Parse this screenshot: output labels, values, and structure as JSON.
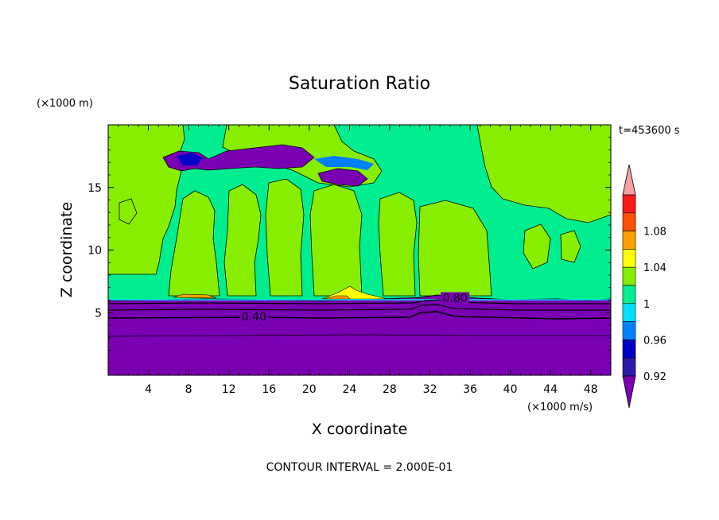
{
  "chart_data": {
    "type": "heatmap",
    "title": "Saturation Ratio",
    "xlabel": "X coordinate",
    "ylabel": "Z coordinate",
    "x_unit": "(×1000 m/s)",
    "y_unit": "(×1000 m)",
    "time_label": "t=453600 s",
    "footer": "CONTOUR INTERVAL = 2.000E-01",
    "xlim": [
      0,
      50
    ],
    "ylim": [
      0,
      20
    ],
    "x_ticks": [
      4,
      8,
      12,
      16,
      20,
      24,
      28,
      32,
      36,
      40,
      44,
      48
    ],
    "y_ticks": [
      5,
      10,
      15
    ],
    "contour_labels": [
      {
        "text": "0.40",
        "x": 14.5,
        "z": 4.5
      },
      {
        "text": "0.80",
        "x": 34.5,
        "z": 6.0
      }
    ],
    "colorbar": {
      "levels": [
        0.92,
        0.94,
        0.96,
        0.98,
        1.0,
        1.02,
        1.04,
        1.06,
        1.08,
        1.1
      ],
      "colors": [
        "#7a00b4",
        "#2c1aa8",
        "#0000c8",
        "#0080ff",
        "#00e0ff",
        "#00ee90",
        "#88ee00",
        "#ffff00",
        "#ffa000",
        "#ff5000",
        "#ff1a1a",
        "#f4a0a0"
      ],
      "tick_labels": [
        "0.92",
        "0.96",
        "1",
        "1.04",
        "1.08"
      ],
      "extend": "both"
    },
    "regions": {
      "lower_layer_top_z": 6.0,
      "lower_layer_value": "<0.92",
      "upper_dominant_value": "0.98-1.02"
    }
  }
}
